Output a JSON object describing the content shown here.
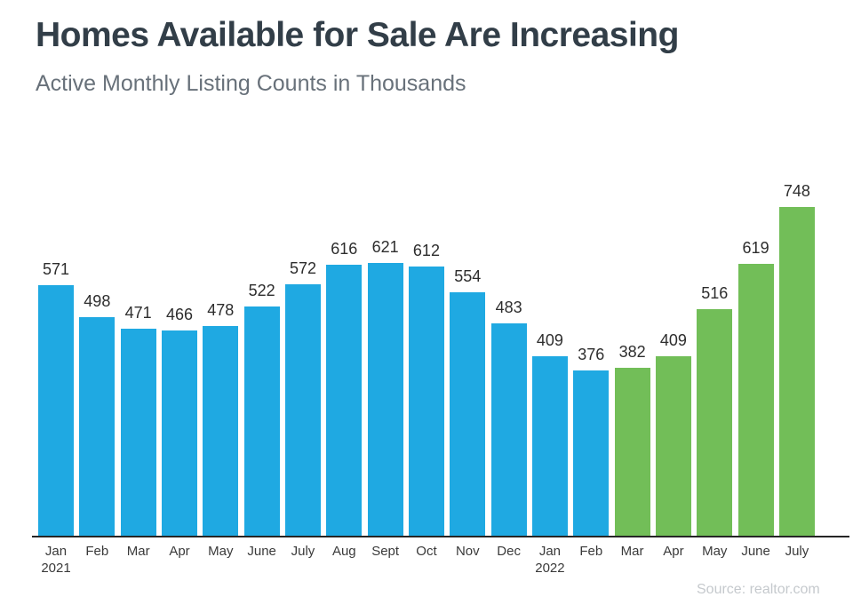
{
  "header": {
    "title": "Homes Available for Sale Are Increasing",
    "subtitle": "Active Monthly Listing Counts in Thousands"
  },
  "footer": {
    "source_note": "Source: realtor.com"
  },
  "chart_data": {
    "type": "bar",
    "title": "Homes Available for Sale Are Increasing",
    "subtitle": "Active Monthly Listing Counts in Thousands",
    "xlabel": "",
    "ylabel": "",
    "unit": "thousands",
    "ylim": [
      0,
      780
    ],
    "grid": false,
    "legend_position": "none",
    "value_labels": "above-bars",
    "bar_colors": {
      "blue": "#1fa9e2",
      "green": "#72be58"
    },
    "categories": [
      "Jan 2021",
      "Feb",
      "Mar",
      "Apr",
      "May",
      "June",
      "July",
      "Aug",
      "Sept",
      "Oct",
      "Nov",
      "Dec",
      "Jan 2022",
      "Feb",
      "Mar",
      "Apr",
      "May",
      "June",
      "July"
    ],
    "values": [
      571,
      498,
      471,
      466,
      478,
      522,
      572,
      616,
      621,
      612,
      554,
      483,
      409,
      376,
      382,
      409,
      516,
      619,
      748
    ],
    "points": [
      {
        "month": "Jan",
        "year": "2021",
        "value": 571,
        "segment": "blue"
      },
      {
        "month": "Feb",
        "year": "",
        "value": 498,
        "segment": "blue"
      },
      {
        "month": "Mar",
        "year": "",
        "value": 471,
        "segment": "blue"
      },
      {
        "month": "Apr",
        "year": "",
        "value": 466,
        "segment": "blue"
      },
      {
        "month": "May",
        "year": "",
        "value": 478,
        "segment": "blue"
      },
      {
        "month": "June",
        "year": "",
        "value": 522,
        "segment": "blue"
      },
      {
        "month": "July",
        "year": "",
        "value": 572,
        "segment": "blue"
      },
      {
        "month": "Aug",
        "year": "",
        "value": 616,
        "segment": "blue"
      },
      {
        "month": "Sept",
        "year": "",
        "value": 621,
        "segment": "blue"
      },
      {
        "month": "Oct",
        "year": "",
        "value": 612,
        "segment": "blue"
      },
      {
        "month": "Nov",
        "year": "",
        "value": 554,
        "segment": "blue"
      },
      {
        "month": "Dec",
        "year": "",
        "value": 483,
        "segment": "blue"
      },
      {
        "month": "Jan",
        "year": "2022",
        "value": 409,
        "segment": "blue"
      },
      {
        "month": "Feb",
        "year": "",
        "value": 376,
        "segment": "blue"
      },
      {
        "month": "Mar",
        "year": "",
        "value": 382,
        "segment": "green"
      },
      {
        "month": "Apr",
        "year": "",
        "value": 409,
        "segment": "green"
      },
      {
        "month": "May",
        "year": "",
        "value": 516,
        "segment": "green"
      },
      {
        "month": "June",
        "year": "",
        "value": 619,
        "segment": "green"
      },
      {
        "month": "July",
        "year": "",
        "value": 748,
        "segment": "green"
      }
    ]
  }
}
